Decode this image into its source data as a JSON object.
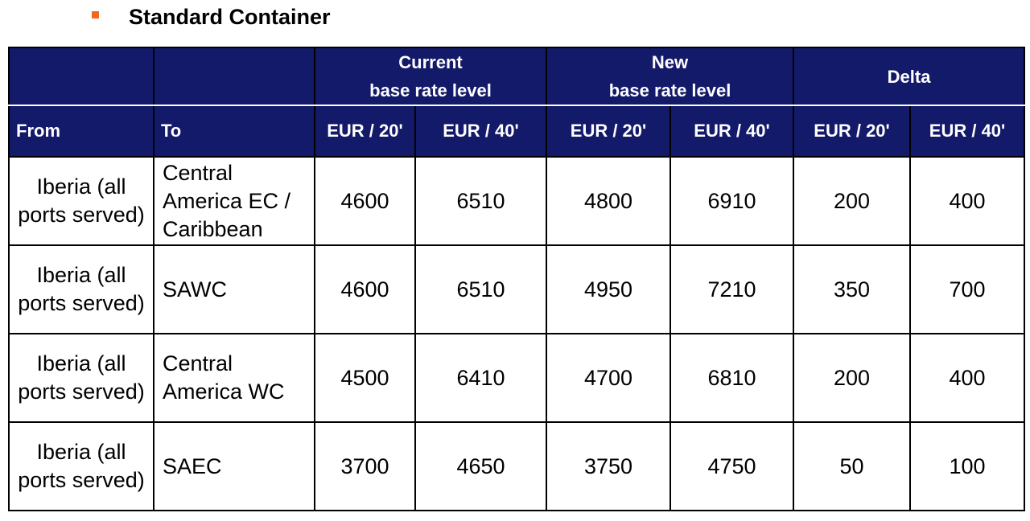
{
  "title": "Standard Container",
  "table": {
    "group_headers": [
      "Current\nbase rate level",
      "New\nbase rate level",
      "Delta"
    ],
    "columns": [
      "From",
      "To",
      "EUR / 20'",
      "EUR / 40'",
      "EUR / 20'",
      "EUR / 40'",
      "EUR / 20'",
      "EUR / 40'"
    ],
    "rows": [
      [
        "Iberia (all ports served)",
        "Central America EC / Caribbean",
        4600,
        6510,
        4800,
        6910,
        200,
        400
      ],
      [
        "Iberia (all ports served)",
        "SAWC",
        4600,
        6510,
        4950,
        7210,
        350,
        700
      ],
      [
        "Iberia (all ports served)",
        "Central America WC",
        4500,
        6410,
        4700,
        6810,
        200,
        400
      ],
      [
        "Iberia (all ports served)",
        "SAEC",
        3700,
        4650,
        3750,
        4750,
        50,
        100
      ]
    ]
  }
}
